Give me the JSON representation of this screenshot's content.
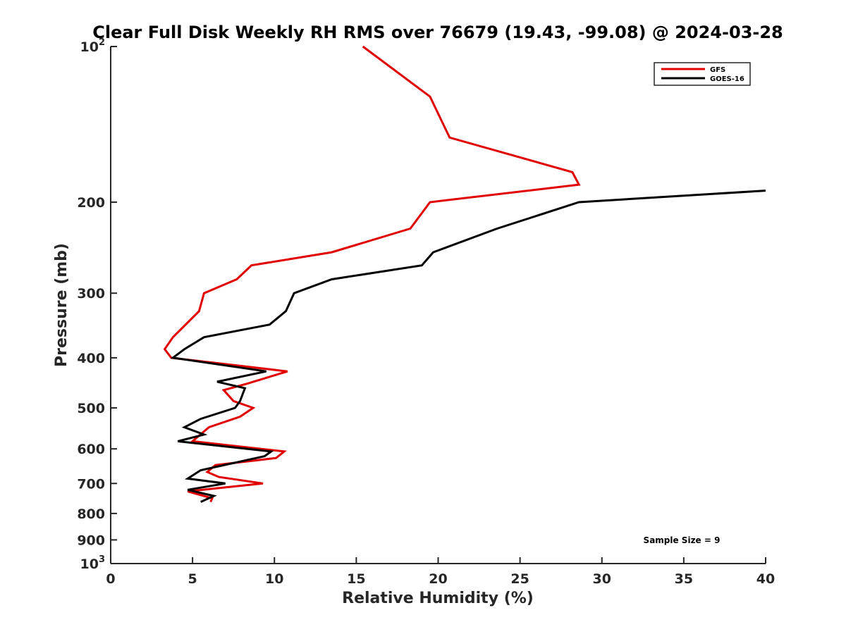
{
  "chart_data": {
    "type": "line",
    "title": "Clear Full Disk Weekly RH RMS over 76679 (19.43, -99.08) @ 2024-03-28",
    "xlabel": "Relative Humidity (%)",
    "ylabel": "Pressure (mb)",
    "xlim": [
      0,
      40
    ],
    "ylim": [
      100,
      1000
    ],
    "y_scale": "log",
    "y_reversed": true,
    "grid": false,
    "legend_position": "top-right",
    "x_ticks": [
      "0",
      "5",
      "10",
      "15",
      "20",
      "25",
      "30",
      "35",
      "40"
    ],
    "y_ticks": [
      {
        "value": 100,
        "base": "10",
        "exp": "2"
      },
      {
        "value": 200,
        "label": "200"
      },
      {
        "value": 300,
        "label": "300"
      },
      {
        "value": 400,
        "label": "400"
      },
      {
        "value": 500,
        "label": "500"
      },
      {
        "value": 600,
        "label": "600"
      },
      {
        "value": 700,
        "label": "700"
      },
      {
        "value": 800,
        "label": "800"
      },
      {
        "value": 900,
        "label": "900"
      },
      {
        "value": 1000,
        "base": "10",
        "exp": "3"
      }
    ],
    "annotation": "Sample Size = 9",
    "series": [
      {
        "name": "GFS",
        "color": "#e00000",
        "points": [
          [
            15.4,
            100
          ],
          [
            19.5,
            125
          ],
          [
            20.7,
            150
          ],
          [
            28.2,
            175
          ],
          [
            28.6,
            185
          ],
          [
            19.5,
            200
          ],
          [
            18.3,
            225
          ],
          [
            13.5,
            250
          ],
          [
            8.6,
            265
          ],
          [
            7.7,
            282
          ],
          [
            5.7,
            300
          ],
          [
            5.4,
            325
          ],
          [
            3.8,
            365
          ],
          [
            3.3,
            385
          ],
          [
            3.7,
            400
          ],
          [
            10.8,
            425
          ],
          [
            8.2,
            450
          ],
          [
            6.9,
            462
          ],
          [
            7.5,
            485
          ],
          [
            8.7,
            500
          ],
          [
            7.9,
            520
          ],
          [
            6.0,
            545
          ],
          [
            5.0,
            580
          ],
          [
            10.6,
            607
          ],
          [
            10.1,
            625
          ],
          [
            6.4,
            645
          ],
          [
            5.9,
            665
          ],
          [
            6.6,
            680
          ],
          [
            9.3,
            700
          ],
          [
            4.7,
            725
          ],
          [
            6.2,
            748
          ],
          [
            6.1,
            760
          ]
        ]
      },
      {
        "name": "GOES-16",
        "color": "#000000",
        "points": [
          [
            40.0,
            190
          ],
          [
            28.6,
            200
          ],
          [
            23.6,
            225
          ],
          [
            19.7,
            250
          ],
          [
            19.0,
            265
          ],
          [
            13.5,
            282
          ],
          [
            11.2,
            300
          ],
          [
            10.7,
            325
          ],
          [
            9.7,
            345
          ],
          [
            5.7,
            365
          ],
          [
            4.5,
            385
          ],
          [
            3.8,
            400
          ],
          [
            9.5,
            425
          ],
          [
            6.5,
            445
          ],
          [
            8.2,
            458
          ],
          [
            7.9,
            485
          ],
          [
            7.6,
            500
          ],
          [
            5.5,
            525
          ],
          [
            4.5,
            545
          ],
          [
            5.7,
            563
          ],
          [
            4.1,
            580
          ],
          [
            9.8,
            607
          ],
          [
            9.4,
            620
          ],
          [
            5.5,
            660
          ],
          [
            4.7,
            685
          ],
          [
            7.0,
            700
          ],
          [
            4.7,
            720
          ],
          [
            6.3,
            740
          ],
          [
            5.5,
            760
          ]
        ]
      }
    ]
  }
}
